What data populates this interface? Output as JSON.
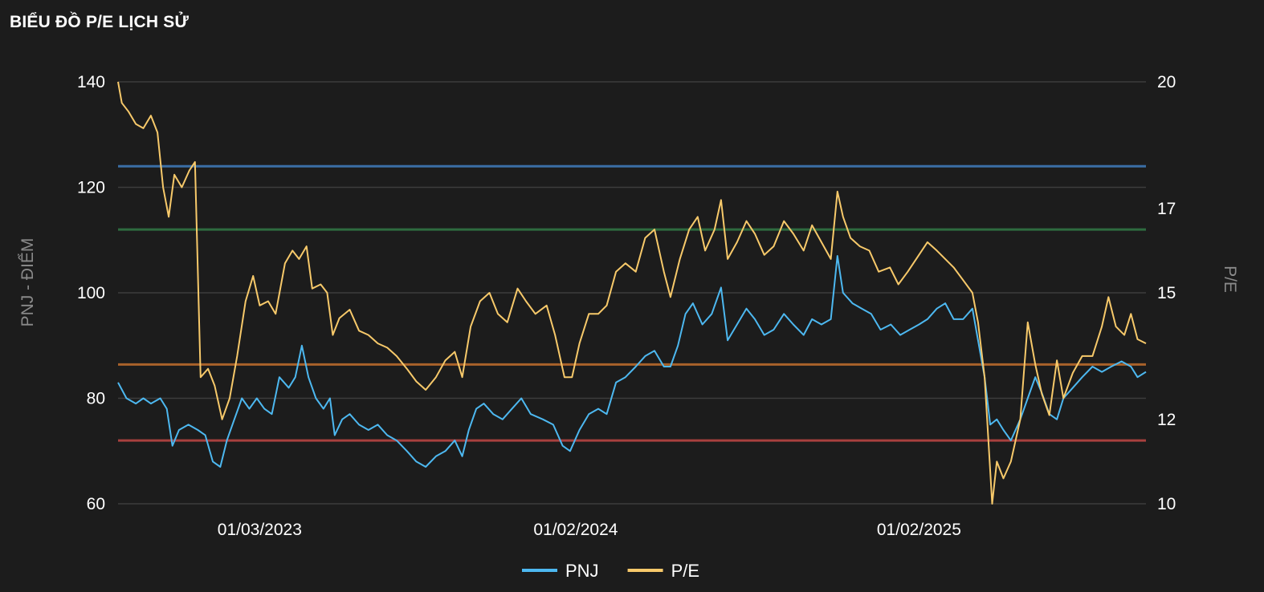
{
  "title": "BIỂU ĐỒ P/E LỊCH SỬ",
  "chart_data": {
    "type": "line",
    "title": "BIỂU ĐỒ P/E LỊCH SỬ",
    "ylabel_left": "PNJ - ĐIỂM",
    "ylabel_right": "P/E",
    "ylim_left": [
      60,
      140
    ],
    "ylim_right": [
      10,
      20
    ],
    "yticks_left": [
      60,
      80,
      100,
      120,
      140
    ],
    "yticks_right": [
      10,
      12,
      15,
      17,
      20
    ],
    "xlim": [
      "2022-10-01",
      "2025-10-01"
    ],
    "xticks": [
      {
        "date": "2023-03-01",
        "label": "01/03/2023"
      },
      {
        "date": "2024-02-01",
        "label": "01/02/2024"
      },
      {
        "date": "2025-02-01",
        "label": "01/02/2025"
      }
    ],
    "grid": true,
    "legend_position": "bottom-center",
    "reference_lines": [
      {
        "axis": "right",
        "value": 18.0,
        "color": "#3a6ea5"
      },
      {
        "axis": "right",
        "value": 16.5,
        "color": "#2e6b3f"
      },
      {
        "axis": "right",
        "value": 13.3,
        "color": "#a8622a"
      },
      {
        "axis": "right",
        "value": 11.5,
        "color": "#a8403e"
      }
    ],
    "series": [
      {
        "name": "PNJ",
        "axis": "left",
        "color": "#4db8f0",
        "points": [
          [
            "2022-10-01",
            83
          ],
          [
            "2022-10-10",
            80
          ],
          [
            "2022-10-20",
            79
          ],
          [
            "2022-10-28",
            80
          ],
          [
            "2022-11-05",
            79
          ],
          [
            "2022-11-15",
            80
          ],
          [
            "2022-11-22",
            78
          ],
          [
            "2022-11-28",
            71
          ],
          [
            "2022-12-05",
            74
          ],
          [
            "2022-12-15",
            75
          ],
          [
            "2022-12-25",
            74
          ],
          [
            "2023-01-02",
            73
          ],
          [
            "2023-01-10",
            68
          ],
          [
            "2023-01-18",
            67
          ],
          [
            "2023-01-25",
            72
          ],
          [
            "2023-02-02",
            76
          ],
          [
            "2023-02-10",
            80
          ],
          [
            "2023-02-18",
            78
          ],
          [
            "2023-02-26",
            80
          ],
          [
            "2023-03-06",
            78
          ],
          [
            "2023-03-14",
            77
          ],
          [
            "2023-03-22",
            84
          ],
          [
            "2023-04-01",
            82
          ],
          [
            "2023-04-08",
            84
          ],
          [
            "2023-04-15",
            90
          ],
          [
            "2023-04-22",
            84
          ],
          [
            "2023-04-30",
            80
          ],
          [
            "2023-05-08",
            78
          ],
          [
            "2023-05-15",
            80
          ],
          [
            "2023-05-20",
            73
          ],
          [
            "2023-05-28",
            76
          ],
          [
            "2023-06-05",
            77
          ],
          [
            "2023-06-15",
            75
          ],
          [
            "2023-06-25",
            74
          ],
          [
            "2023-07-05",
            75
          ],
          [
            "2023-07-15",
            73
          ],
          [
            "2023-07-25",
            72
          ],
          [
            "2023-08-05",
            70
          ],
          [
            "2023-08-15",
            68
          ],
          [
            "2023-08-25",
            67
          ],
          [
            "2023-09-05",
            69
          ],
          [
            "2023-09-15",
            70
          ],
          [
            "2023-09-25",
            72
          ],
          [
            "2023-10-03",
            69
          ],
          [
            "2023-10-10",
            74
          ],
          [
            "2023-10-18",
            78
          ],
          [
            "2023-10-26",
            79
          ],
          [
            "2023-11-05",
            77
          ],
          [
            "2023-11-15",
            76
          ],
          [
            "2023-11-25",
            78
          ],
          [
            "2023-12-05",
            80
          ],
          [
            "2023-12-15",
            77
          ],
          [
            "2023-12-28",
            76
          ],
          [
            "2024-01-08",
            75
          ],
          [
            "2024-01-18",
            71
          ],
          [
            "2024-01-26",
            70
          ],
          [
            "2024-02-05",
            74
          ],
          [
            "2024-02-15",
            77
          ],
          [
            "2024-02-25",
            78
          ],
          [
            "2024-03-05",
            77
          ],
          [
            "2024-03-15",
            83
          ],
          [
            "2024-03-25",
            84
          ],
          [
            "2024-04-05",
            86
          ],
          [
            "2024-04-15",
            88
          ],
          [
            "2024-04-25",
            89
          ],
          [
            "2024-05-05",
            86
          ],
          [
            "2024-05-12",
            86
          ],
          [
            "2024-05-20",
            90
          ],
          [
            "2024-05-28",
            96
          ],
          [
            "2024-06-05",
            98
          ],
          [
            "2024-06-15",
            94
          ],
          [
            "2024-06-25",
            96
          ],
          [
            "2024-07-05",
            101
          ],
          [
            "2024-07-12",
            91
          ],
          [
            "2024-07-22",
            94
          ],
          [
            "2024-08-01",
            97
          ],
          [
            "2024-08-10",
            95
          ],
          [
            "2024-08-20",
            92
          ],
          [
            "2024-08-30",
            93
          ],
          [
            "2024-09-10",
            96
          ],
          [
            "2024-09-20",
            94
          ],
          [
            "2024-10-01",
            92
          ],
          [
            "2024-10-10",
            95
          ],
          [
            "2024-10-20",
            94
          ],
          [
            "2024-10-30",
            95
          ],
          [
            "2024-11-06",
            107
          ],
          [
            "2024-11-12",
            100
          ],
          [
            "2024-11-22",
            98
          ],
          [
            "2024-12-02",
            97
          ],
          [
            "2024-12-12",
            96
          ],
          [
            "2024-12-22",
            93
          ],
          [
            "2025-01-02",
            94
          ],
          [
            "2025-01-12",
            92
          ],
          [
            "2025-01-22",
            93
          ],
          [
            "2025-02-01",
            94
          ],
          [
            "2025-02-10",
            95
          ],
          [
            "2025-02-20",
            97
          ],
          [
            "2025-03-01",
            98
          ],
          [
            "2025-03-10",
            95
          ],
          [
            "2025-03-20",
            95
          ],
          [
            "2025-03-30",
            97
          ],
          [
            "2025-04-05",
            91
          ],
          [
            "2025-04-12",
            84
          ],
          [
            "2025-04-18",
            75
          ],
          [
            "2025-04-25",
            76
          ],
          [
            "2025-05-02",
            74
          ],
          [
            "2025-05-10",
            72
          ],
          [
            "2025-05-20",
            76
          ],
          [
            "2025-05-28",
            80
          ],
          [
            "2025-06-05",
            84
          ],
          [
            "2025-06-12",
            81
          ],
          [
            "2025-06-20",
            77
          ],
          [
            "2025-06-28",
            76
          ],
          [
            "2025-07-05",
            80
          ],
          [
            "2025-07-15",
            82
          ],
          [
            "2025-07-25",
            84
          ],
          [
            "2025-08-05",
            86
          ],
          [
            "2025-08-15",
            85
          ],
          [
            "2025-08-25",
            86
          ],
          [
            "2025-09-05",
            87
          ],
          [
            "2025-09-15",
            86
          ],
          [
            "2025-09-22",
            84
          ],
          [
            "2025-10-01",
            85
          ]
        ]
      },
      {
        "name": "P/E",
        "axis": "right",
        "color": "#f7c96a",
        "points": [
          [
            "2022-10-01",
            20.0
          ],
          [
            "2022-10-05",
            19.5
          ],
          [
            "2022-10-12",
            19.3
          ],
          [
            "2022-10-20",
            19.0
          ],
          [
            "2022-10-28",
            18.9
          ],
          [
            "2022-11-05",
            19.2
          ],
          [
            "2022-11-12",
            18.8
          ],
          [
            "2022-11-18",
            17.5
          ],
          [
            "2022-11-24",
            16.8
          ],
          [
            "2022-11-30",
            17.8
          ],
          [
            "2022-12-08",
            17.5
          ],
          [
            "2022-12-16",
            17.9
          ],
          [
            "2022-12-22",
            18.1
          ],
          [
            "2022-12-28",
            13.0
          ],
          [
            "2023-01-05",
            13.2
          ],
          [
            "2023-01-12",
            12.8
          ],
          [
            "2023-01-20",
            12.0
          ],
          [
            "2023-01-28",
            12.5
          ],
          [
            "2023-02-05",
            13.5
          ],
          [
            "2023-02-14",
            14.8
          ],
          [
            "2023-02-22",
            15.4
          ],
          [
            "2023-03-01",
            14.7
          ],
          [
            "2023-03-10",
            14.8
          ],
          [
            "2023-03-18",
            14.5
          ],
          [
            "2023-03-28",
            15.7
          ],
          [
            "2023-04-05",
            16.0
          ],
          [
            "2023-04-12",
            15.8
          ],
          [
            "2023-04-20",
            16.1
          ],
          [
            "2023-04-26",
            15.1
          ],
          [
            "2023-05-05",
            15.2
          ],
          [
            "2023-05-12",
            15.0
          ],
          [
            "2023-05-18",
            14.0
          ],
          [
            "2023-05-25",
            14.4
          ],
          [
            "2023-06-05",
            14.6
          ],
          [
            "2023-06-15",
            14.1
          ],
          [
            "2023-06-25",
            14.0
          ],
          [
            "2023-07-05",
            13.8
          ],
          [
            "2023-07-15",
            13.7
          ],
          [
            "2023-07-25",
            13.5
          ],
          [
            "2023-08-05",
            13.2
          ],
          [
            "2023-08-15",
            12.9
          ],
          [
            "2023-08-25",
            12.7
          ],
          [
            "2023-09-05",
            13.0
          ],
          [
            "2023-09-15",
            13.4
          ],
          [
            "2023-09-25",
            13.6
          ],
          [
            "2023-10-03",
            13.0
          ],
          [
            "2023-10-12",
            14.2
          ],
          [
            "2023-10-22",
            14.8
          ],
          [
            "2023-11-01",
            15.0
          ],
          [
            "2023-11-10",
            14.5
          ],
          [
            "2023-11-20",
            14.3
          ],
          [
            "2023-12-01",
            15.1
          ],
          [
            "2023-12-10",
            14.8
          ],
          [
            "2023-12-20",
            14.5
          ],
          [
            "2024-01-01",
            14.7
          ],
          [
            "2024-01-10",
            14.0
          ],
          [
            "2024-01-20",
            13.0
          ],
          [
            "2024-01-28",
            13.0
          ],
          [
            "2024-02-05",
            13.8
          ],
          [
            "2024-02-15",
            14.5
          ],
          [
            "2024-02-25",
            14.5
          ],
          [
            "2024-03-05",
            14.7
          ],
          [
            "2024-03-15",
            15.5
          ],
          [
            "2024-03-25",
            15.7
          ],
          [
            "2024-04-05",
            15.5
          ],
          [
            "2024-04-15",
            16.3
          ],
          [
            "2024-04-25",
            16.5
          ],
          [
            "2024-05-05",
            15.5
          ],
          [
            "2024-05-12",
            14.9
          ],
          [
            "2024-05-22",
            15.8
          ],
          [
            "2024-06-01",
            16.5
          ],
          [
            "2024-06-10",
            16.8
          ],
          [
            "2024-06-18",
            16.0
          ],
          [
            "2024-06-28",
            16.5
          ],
          [
            "2024-07-05",
            17.2
          ],
          [
            "2024-07-12",
            15.8
          ],
          [
            "2024-07-22",
            16.2
          ],
          [
            "2024-08-01",
            16.7
          ],
          [
            "2024-08-10",
            16.4
          ],
          [
            "2024-08-20",
            15.9
          ],
          [
            "2024-08-30",
            16.1
          ],
          [
            "2024-09-10",
            16.7
          ],
          [
            "2024-09-20",
            16.4
          ],
          [
            "2024-10-01",
            16.0
          ],
          [
            "2024-10-10",
            16.6
          ],
          [
            "2024-10-20",
            16.2
          ],
          [
            "2024-10-30",
            15.8
          ],
          [
            "2024-11-06",
            17.4
          ],
          [
            "2024-11-12",
            16.8
          ],
          [
            "2024-11-20",
            16.3
          ],
          [
            "2024-11-30",
            16.1
          ],
          [
            "2024-12-10",
            16.0
          ],
          [
            "2024-12-20",
            15.5
          ],
          [
            "2025-01-01",
            15.6
          ],
          [
            "2025-01-10",
            15.2
          ],
          [
            "2025-01-20",
            15.5
          ],
          [
            "2025-02-01",
            15.9
          ],
          [
            "2025-02-10",
            16.2
          ],
          [
            "2025-02-20",
            16.0
          ],
          [
            "2025-03-01",
            15.8
          ],
          [
            "2025-03-10",
            15.6
          ],
          [
            "2025-03-20",
            15.3
          ],
          [
            "2025-03-30",
            15.0
          ],
          [
            "2025-04-05",
            14.3
          ],
          [
            "2025-04-12",
            13.0
          ],
          [
            "2025-04-16",
            11.5
          ],
          [
            "2025-04-20",
            10.0
          ],
          [
            "2025-04-25",
            11.0
          ],
          [
            "2025-05-02",
            10.6
          ],
          [
            "2025-05-10",
            11.0
          ],
          [
            "2025-05-20",
            12.0
          ],
          [
            "2025-05-28",
            14.3
          ],
          [
            "2025-06-05",
            13.3
          ],
          [
            "2025-06-12",
            12.6
          ],
          [
            "2025-06-20",
            12.1
          ],
          [
            "2025-06-28",
            13.4
          ],
          [
            "2025-07-05",
            12.5
          ],
          [
            "2025-07-15",
            13.1
          ],
          [
            "2025-07-25",
            13.5
          ],
          [
            "2025-08-05",
            13.5
          ],
          [
            "2025-08-15",
            14.2
          ],
          [
            "2025-08-22",
            14.9
          ],
          [
            "2025-08-30",
            14.2
          ],
          [
            "2025-09-08",
            14.0
          ],
          [
            "2025-09-15",
            14.5
          ],
          [
            "2025-09-22",
            13.9
          ],
          [
            "2025-10-01",
            13.8
          ]
        ]
      }
    ]
  }
}
